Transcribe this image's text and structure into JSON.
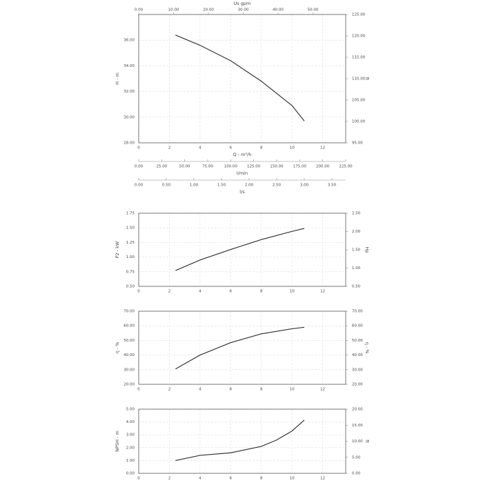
{
  "chart_data": [
    {
      "type": "line",
      "ylabel": "H - m",
      "y2label": "ft",
      "xlabel": "Q - m³/h",
      "color": "#333333",
      "grid": true,
      "x": [
        2.4,
        4,
        6,
        8,
        10,
        10.8
      ],
      "values": [
        36.4,
        35.6,
        34.4,
        32.8,
        30.9,
        29.7
      ],
      "xlim": [
        0,
        13.5
      ],
      "xticks": [
        0,
        2,
        4,
        6,
        8,
        10,
        12
      ],
      "ylim": [
        28,
        38
      ],
      "yticks": [
        {
          "value": 28,
          "label": "28.00"
        },
        {
          "value": 30,
          "label": "30.00"
        },
        {
          "value": 32,
          "label": "32.00"
        },
        {
          "value": 34,
          "label": "34.00"
        },
        {
          "value": 36,
          "label": "36.00"
        }
      ],
      "y2lim": [
        95,
        125
      ],
      "y2ticks": [
        {
          "value": 95,
          "label": "95.00"
        },
        {
          "value": 100,
          "label": "100.00"
        },
        {
          "value": 105,
          "label": "105.00"
        },
        {
          "value": 110,
          "label": "110.00"
        },
        {
          "value": 115,
          "label": "115.00"
        },
        {
          "value": 120,
          "label": "120.00"
        },
        {
          "value": 125,
          "label": "125.00"
        }
      ],
      "top_axis": {
        "label": "Us gpm",
        "xlim": [
          0,
          59.4
        ],
        "xticks": [
          {
            "value": 0,
            "label": "0.00"
          },
          {
            "value": 10,
            "label": "10.00"
          },
          {
            "value": 20,
            "label": "20.00"
          },
          {
            "value": 30,
            "label": "30.00"
          },
          {
            "value": 40,
            "label": "40.00"
          },
          {
            "value": 50,
            "label": "50.00"
          }
        ]
      },
      "lower_axes": [
        {
          "label": "l/min",
          "xlim": [
            0,
            225
          ],
          "xticks": [
            {
              "value": 0,
              "label": "0.00"
            },
            {
              "value": 25,
              "label": "25.00"
            },
            {
              "value": 50,
              "label": "50.00"
            },
            {
              "value": 75,
              "label": "75.00"
            },
            {
              "value": 100,
              "label": "100.00"
            },
            {
              "value": 125,
              "label": "125.00"
            },
            {
              "value": 150,
              "label": "150.00"
            },
            {
              "value": 175,
              "label": "175.00"
            },
            {
              "value": 200,
              "label": "200.00"
            },
            {
              "value": 225,
              "label": "225.00"
            }
          ]
        },
        {
          "label": "l/s",
          "xlim": [
            0,
            3.75
          ],
          "xticks": [
            {
              "value": 0,
              "label": "0.00"
            },
            {
              "value": 0.5,
              "label": "0.50"
            },
            {
              "value": 1,
              "label": "1.00"
            },
            {
              "value": 1.5,
              "label": "1.50"
            },
            {
              "value": 2,
              "label": "2.00"
            },
            {
              "value": 2.5,
              "label": "2.50"
            },
            {
              "value": 3,
              "label": "3.00"
            },
            {
              "value": 3.5,
              "label": "3.50"
            }
          ]
        }
      ]
    },
    {
      "type": "line",
      "ylabel": "P2 - kW",
      "y2label": "Hp",
      "color": "#333333",
      "grid": true,
      "x": [
        2.4,
        4,
        6,
        8,
        10,
        10.8
      ],
      "values": [
        0.77,
        0.95,
        1.13,
        1.3,
        1.44,
        1.49
      ],
      "xlim": [
        0,
        13.5
      ],
      "xticks": [
        0,
        2,
        4,
        6,
        8,
        10,
        12
      ],
      "ylim": [
        0.5,
        1.75
      ],
      "yticks": [
        {
          "value": 0.5,
          "label": "0.50"
        },
        {
          "value": 0.75,
          "label": "0.75"
        },
        {
          "value": 1,
          "label": "1.00"
        },
        {
          "value": 1.25,
          "label": "1.25"
        },
        {
          "value": 1.5,
          "label": "1.50"
        },
        {
          "value": 1.75,
          "label": "1.75"
        }
      ],
      "y2lim": [
        0.5,
        2.5
      ],
      "y2ticks": [
        {
          "value": 0.5,
          "label": "0.50"
        },
        {
          "value": 1,
          "label": "1.00"
        },
        {
          "value": 1.5,
          "label": "1.50"
        },
        {
          "value": 2,
          "label": "2.00"
        },
        {
          "value": 2.5,
          "label": "2.50"
        }
      ]
    },
    {
      "type": "line",
      "ylabel": "η - %",
      "y2label": "η - %",
      "color": "#333333",
      "grid": true,
      "x": [
        2.4,
        4,
        6,
        8,
        10,
        10.8
      ],
      "values": [
        30.5,
        40,
        48.5,
        54.5,
        58,
        59
      ],
      "xlim": [
        0,
        13.5
      ],
      "xticks": [
        0,
        2,
        4,
        6,
        8,
        10,
        12
      ],
      "ylim": [
        20,
        70
      ],
      "yticks": [
        {
          "value": 20,
          "label": "20.00"
        },
        {
          "value": 30,
          "label": "30.00"
        },
        {
          "value": 40,
          "label": "40.00"
        },
        {
          "value": 50,
          "label": "50.00"
        },
        {
          "value": 60,
          "label": "60.00"
        },
        {
          "value": 70,
          "label": "70.00"
        }
      ],
      "y2lim": [
        20,
        70
      ],
      "y2ticks": [
        {
          "value": 20,
          "label": "20.00"
        },
        {
          "value": 30,
          "label": "30.00"
        },
        {
          "value": 40,
          "label": "40.00"
        },
        {
          "value": 50,
          "label": "50.00"
        },
        {
          "value": 60,
          "label": "60.00"
        },
        {
          "value": 70,
          "label": "70.00"
        }
      ]
    },
    {
      "type": "line",
      "ylabel": "NPSH - m",
      "y2label": "ft",
      "color": "#333333",
      "grid": true,
      "x": [
        2.4,
        4,
        6,
        8,
        9,
        10,
        10.8
      ],
      "values": [
        1.0,
        1.4,
        1.6,
        2.1,
        2.6,
        3.3,
        4.15
      ],
      "xlim": [
        0,
        13.5
      ],
      "xticks": [
        0,
        2,
        4,
        6,
        8,
        10,
        12
      ],
      "ylim": [
        0,
        5
      ],
      "yticks": [
        {
          "value": 0,
          "label": "0.00"
        },
        {
          "value": 1,
          "label": "1.00"
        },
        {
          "value": 2,
          "label": "2.00"
        },
        {
          "value": 3,
          "label": "3.00"
        },
        {
          "value": 4,
          "label": "4.00"
        },
        {
          "value": 5,
          "label": "5.00"
        }
      ],
      "y2lim": [
        0,
        20
      ],
      "y2ticks": [
        {
          "value": 0,
          "label": "0.00"
        },
        {
          "value": 5,
          "label": "5.00"
        },
        {
          "value": 10,
          "label": "10.00"
        },
        {
          "value": 15,
          "label": "15.00"
        },
        {
          "value": 20,
          "label": "20.00"
        }
      ]
    }
  ]
}
